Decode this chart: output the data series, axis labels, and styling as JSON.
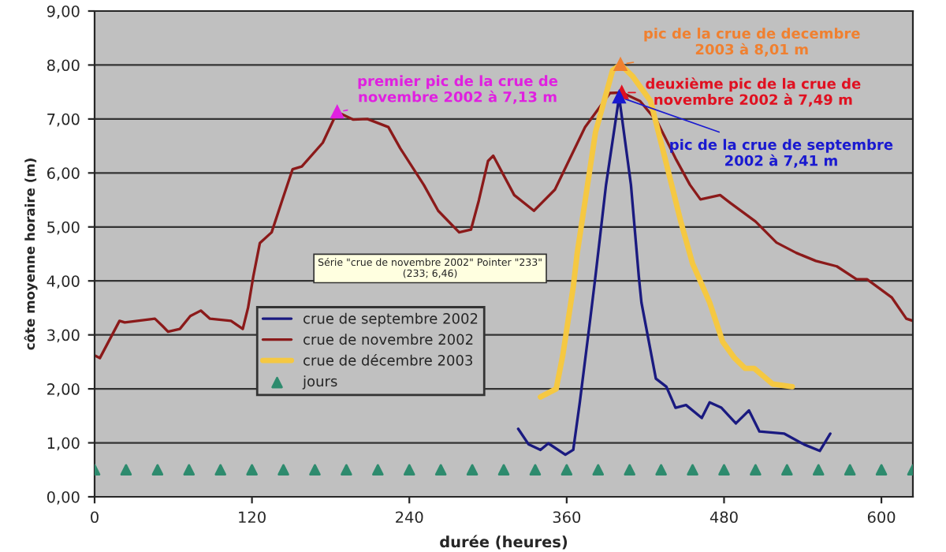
{
  "chart_data": {
    "type": "line",
    "xlabel": "durée (heures)",
    "ylabel": "côte moyenne horaire (m)",
    "xlim": [
      0,
      624
    ],
    "ylim": [
      0,
      9
    ],
    "xticks": [
      0,
      120,
      240,
      360,
      480,
      600
    ],
    "yticks": [
      {
        "value": 0,
        "label": "0,00"
      },
      {
        "value": 1,
        "label": "1,00"
      },
      {
        "value": 2,
        "label": "2,00"
      },
      {
        "value": 3,
        "label": "3,00"
      },
      {
        "value": 4,
        "label": "4,00"
      },
      {
        "value": 5,
        "label": "5,00"
      },
      {
        "value": 6,
        "label": "6,00"
      },
      {
        "value": 7,
        "label": "7,00"
      },
      {
        "value": 8,
        "label": "8,00"
      },
      {
        "value": 9,
        "label": "9,00"
      }
    ],
    "grid": "y",
    "legend": "center left",
    "series": [
      {
        "name": "crue de septembre 2002",
        "color": "#1a1a80",
        "x": [
          323,
          331,
          340,
          346,
          359,
          365,
          370,
          378,
          382,
          390,
          400,
          409,
          415,
          417,
          428,
          436,
          443,
          451,
          463,
          469,
          478,
          489,
          499,
          507,
          526,
          541,
          553,
          561
        ],
        "values": [
          1.26,
          0.97,
          0.87,
          0.99,
          0.78,
          0.87,
          1.75,
          3.3,
          4.1,
          5.78,
          7.41,
          5.78,
          4.08,
          3.6,
          2.19,
          2.04,
          1.65,
          1.7,
          1.46,
          1.75,
          1.65,
          1.36,
          1.6,
          1.21,
          1.17,
          0.97,
          0.85,
          1.17
        ]
      },
      {
        "name": "crue de novembre 2002",
        "color": "#8b1a1a",
        "x": [
          0,
          4,
          19,
          23,
          46,
          52,
          56,
          65,
          73,
          81,
          88,
          104,
          113,
          117,
          121,
          126,
          135,
          143,
          151,
          158,
          174,
          185,
          197,
          208,
          224,
          233,
          251,
          262,
          278,
          287,
          293,
          300,
          304,
          320,
          335,
          351,
          374,
          393,
          402,
          416,
          429,
          443,
          454,
          462,
          477,
          485,
          504,
          520,
          535,
          550,
          566,
          581,
          589,
          608,
          619,
          624
        ],
        "values": [
          2.62,
          2.57,
          3.26,
          3.23,
          3.3,
          3.16,
          3.06,
          3.11,
          3.35,
          3.45,
          3.3,
          3.26,
          3.11,
          3.5,
          4.08,
          4.7,
          4.9,
          5.49,
          6.07,
          6.12,
          6.56,
          7.13,
          6.99,
          7.0,
          6.85,
          6.46,
          5.78,
          5.3,
          4.9,
          4.95,
          5.49,
          6.22,
          6.32,
          5.59,
          5.3,
          5.69,
          6.85,
          7.48,
          7.49,
          7.33,
          6.95,
          6.27,
          5.78,
          5.51,
          5.59,
          5.44,
          5.1,
          4.71,
          4.52,
          4.37,
          4.27,
          4.03,
          4.03,
          3.69,
          3.3,
          3.26
        ]
      },
      {
        "name": "crue de décembre 2003",
        "color": "#f5c842",
        "x": [
          340,
          352,
          357,
          365,
          368,
          382,
          395,
          401,
          410,
          424,
          435,
          447,
          456,
          462,
          469,
          479,
          488,
          496,
          503,
          517,
          532
        ],
        "values": [
          1.85,
          2.0,
          2.62,
          3.89,
          4.51,
          6.76,
          7.9,
          8.01,
          7.8,
          7.33,
          6.27,
          5.1,
          4.32,
          3.99,
          3.6,
          2.87,
          2.57,
          2.38,
          2.38,
          2.09,
          2.04
        ]
      },
      {
        "name": "jours",
        "type": "scatter",
        "marker": "triangle",
        "color": "#2e8b6e",
        "x": [
          0,
          24,
          48,
          72,
          96,
          120,
          144,
          168,
          192,
          216,
          240,
          264,
          288,
          312,
          336,
          360,
          384,
          408,
          432,
          456,
          480,
          504,
          528,
          552,
          576,
          600,
          624
        ],
        "values": [
          0.5,
          0.5,
          0.5,
          0.5,
          0.5,
          0.5,
          0.5,
          0.5,
          0.5,
          0.5,
          0.5,
          0.5,
          0.5,
          0.5,
          0.5,
          0.5,
          0.5,
          0.5,
          0.5,
          0.5,
          0.5,
          0.5,
          0.5,
          0.5,
          0.5,
          0.5,
          0.5
        ]
      }
    ],
    "annotations": [
      {
        "text": "premier pic de la crue de\nnovembre 2002 à 7,13 m",
        "x": 185,
        "y": 7.13
      },
      {
        "text": "pic de la crue de decembre\n2003 à 8,01 m",
        "x": 401,
        "y": 8.01
      },
      {
        "text": "deuxième pic de la crue de\nnovembre 2002 à 7,49 m",
        "x": 402,
        "y": 7.49
      },
      {
        "text": "pic de la crue de septembre\n2002 à 7,41 m",
        "x": 400,
        "y": 7.41
      },
      "Série \"crue de novembre 2002\" Pointer \"233\"\n(233; 6,46)"
    ]
  }
}
